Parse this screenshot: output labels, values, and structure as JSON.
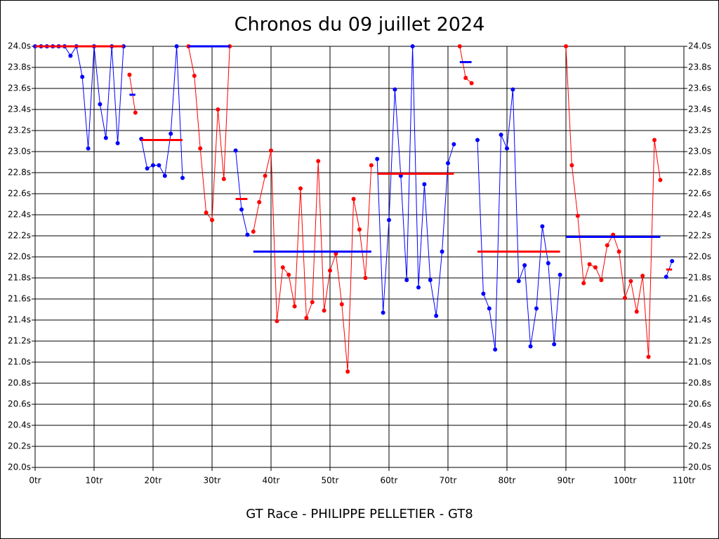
{
  "chart_data": {
    "type": "line",
    "title": "Chronos du 09 juillet 2024",
    "subtitle": "GT Race - PHILIPPE PELLETIER - GT8",
    "xlim": [
      0,
      110
    ],
    "xticks": [
      {
        "value": 0,
        "label": "0tr"
      },
      {
        "value": 10,
        "label": "10tr"
      },
      {
        "value": 20,
        "label": "20tr"
      },
      {
        "value": 30,
        "label": "30tr"
      },
      {
        "value": 40,
        "label": "40tr"
      },
      {
        "value": 50,
        "label": "50tr"
      },
      {
        "value": 60,
        "label": "60tr"
      },
      {
        "value": 70,
        "label": "70tr"
      },
      {
        "value": 80,
        "label": "80tr"
      },
      {
        "value": 90,
        "label": "90tr"
      },
      {
        "value": 100,
        "label": "100tr"
      },
      {
        "value": 110,
        "label": "110tr"
      }
    ],
    "ylim": [
      20.0,
      24.0
    ],
    "yticks": [
      {
        "value": 20.0,
        "label": "20.0s"
      },
      {
        "value": 20.2,
        "label": "20.2s"
      },
      {
        "value": 20.4,
        "label": "20.4s"
      },
      {
        "value": 20.6,
        "label": "20.6s"
      },
      {
        "value": 20.8,
        "label": "20.8s"
      },
      {
        "value": 21.0,
        "label": "21.0s"
      },
      {
        "value": 21.2,
        "label": "21.2s"
      },
      {
        "value": 21.4,
        "label": "21.4s"
      },
      {
        "value": 21.6,
        "label": "21.6s"
      },
      {
        "value": 21.8,
        "label": "21.8s"
      },
      {
        "value": 22.0,
        "label": "22.0s"
      },
      {
        "value": 22.2,
        "label": "22.2s"
      },
      {
        "value": 22.4,
        "label": "22.4s"
      },
      {
        "value": 22.6,
        "label": "22.6s"
      },
      {
        "value": 22.8,
        "label": "22.8s"
      },
      {
        "value": 23.0,
        "label": "23.0s"
      },
      {
        "value": 23.2,
        "label": "23.2s"
      },
      {
        "value": 23.4,
        "label": "23.4s"
      },
      {
        "value": 23.6,
        "label": "23.6s"
      },
      {
        "value": 23.8,
        "label": "23.8s"
      },
      {
        "value": 24.0,
        "label": "24.0s"
      }
    ],
    "grid": true,
    "stints": [
      {
        "color": "#0000ff",
        "average_color": "#ff0000",
        "laps": [
          0,
          1,
          2,
          3,
          4,
          5,
          6,
          7,
          8,
          9,
          10,
          11,
          12,
          13,
          14,
          15
        ],
        "values": [
          24.0,
          24.0,
          24.0,
          24.0,
          24.0,
          24.0,
          23.91,
          24.0,
          23.71,
          23.03,
          24.0,
          23.45,
          23.13,
          24.0,
          23.08,
          24.0
        ],
        "average": 24.0
      },
      {
        "color": "#ff0000",
        "average_color": "#0000ff",
        "laps": [
          16,
          17
        ],
        "values": [
          23.73,
          23.37
        ],
        "average": 23.54
      },
      {
        "color": "#0000ff",
        "average_color": "#ff0000",
        "laps": [
          18,
          19,
          20,
          21,
          22,
          23,
          24,
          25
        ],
        "values": [
          23.12,
          22.84,
          22.87,
          22.87,
          22.77,
          23.17,
          24.0,
          22.75
        ],
        "average": 23.11
      },
      {
        "color": "#ff0000",
        "average_color": "#0000ff",
        "laps": [
          26,
          27,
          28,
          29,
          30,
          31,
          32,
          33
        ],
        "values": [
          24.0,
          23.72,
          23.03,
          22.42,
          22.35,
          23.4,
          22.74,
          24.0
        ],
        "average": 24.0
      },
      {
        "color": "#0000ff",
        "average_color": "#ff0000",
        "laps": [
          34,
          35,
          36
        ],
        "values": [
          23.01,
          22.45,
          22.21
        ],
        "average": 22.55
      },
      {
        "color": "#ff0000",
        "average_color": "#0000ff",
        "laps": [
          37,
          38,
          39,
          40,
          41,
          42,
          43,
          44,
          45,
          46,
          47,
          48,
          49,
          50,
          51,
          52,
          53,
          54,
          55,
          56,
          57
        ],
        "values": [
          22.24,
          22.52,
          22.77,
          23.01,
          21.39,
          21.9,
          21.83,
          21.53,
          22.65,
          21.42,
          21.57,
          22.91,
          21.49,
          21.87,
          22.03,
          21.55,
          20.91,
          22.55,
          22.26,
          21.8,
          22.87
        ],
        "average": 22.05
      },
      {
        "color": "#0000ff",
        "average_color": "#ff0000",
        "laps": [
          58,
          59,
          60,
          61,
          62,
          63,
          64,
          65,
          66,
          67,
          68,
          69,
          70,
          71
        ],
        "values": [
          22.93,
          21.47,
          22.35,
          23.59,
          22.77,
          21.78,
          24.0,
          21.71,
          22.69,
          21.78,
          21.44,
          22.05,
          22.89,
          23.07
        ],
        "average": 22.79
      },
      {
        "color": "#ff0000",
        "average_color": "#0000ff",
        "laps": [
          72,
          73,
          74
        ],
        "values": [
          24.0,
          23.7,
          23.65
        ],
        "average": 23.85
      },
      {
        "color": "#0000ff",
        "average_color": "#ff0000",
        "laps": [
          75,
          76,
          77,
          78,
          79,
          80,
          81,
          82,
          83,
          84,
          85,
          86,
          87,
          88,
          89
        ],
        "values": [
          23.11,
          21.65,
          21.51,
          21.12,
          23.16,
          23.03,
          23.59,
          21.77,
          21.92,
          21.15,
          21.51,
          22.29,
          21.94,
          21.17,
          21.83
        ],
        "average": 22.05
      },
      {
        "color": "#ff0000",
        "average_color": "#0000ff",
        "laps": [
          90,
          91,
          92,
          93,
          94,
          95,
          96,
          97,
          98,
          99,
          100,
          101,
          102,
          103,
          104,
          105,
          106
        ],
        "values": [
          24.0,
          22.87,
          22.39,
          21.75,
          21.93,
          21.9,
          21.78,
          22.11,
          22.21,
          22.05,
          21.61,
          21.77,
          21.48,
          21.82,
          21.05,
          23.11,
          22.73
        ],
        "average": 22.19
      },
      {
        "color": "#0000ff",
        "average_color": "#ff0000",
        "laps": [
          107,
          108
        ],
        "values": [
          21.81,
          21.96
        ],
        "average": 21.88
      }
    ]
  }
}
